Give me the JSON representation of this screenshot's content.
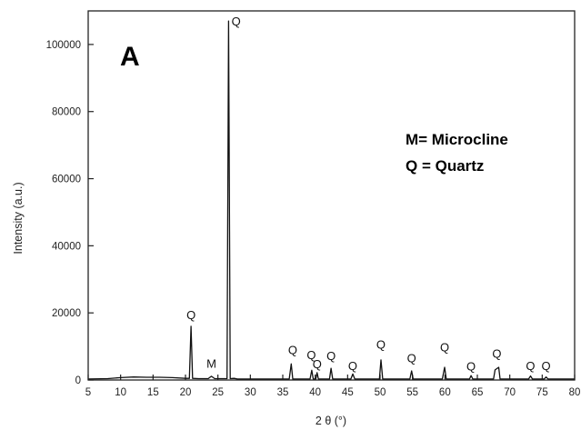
{
  "chart_data": {
    "type": "line",
    "panel_label": "A",
    "xlabel": "2 θ (°)",
    "ylabel": "Intensity (a.u.)",
    "xlim": [
      5,
      80
    ],
    "ylim": [
      0,
      110000
    ],
    "x_ticks": [
      5,
      10,
      15,
      20,
      25,
      30,
      35,
      40,
      45,
      50,
      55,
      60,
      65,
      70,
      75,
      80
    ],
    "y_ticks": [
      0,
      20000,
      40000,
      60000,
      80000,
      100000
    ],
    "legend_lines": [
      "M= Microcline",
      "Q = Quartz"
    ],
    "series": [
      {
        "x": [
          5,
          8,
          10,
          12,
          14,
          16,
          18,
          20,
          20.6,
          20.86,
          21.1,
          22,
          23,
          23.5,
          24.0,
          24.5,
          25,
          26,
          26.4,
          26.64,
          26.9,
          27.5,
          28,
          30,
          32,
          34,
          36,
          36.3,
          36.54,
          36.8,
          38,
          39.2,
          39.47,
          39.7,
          40.1,
          40.29,
          40.5,
          42.2,
          42.45,
          42.7,
          45.5,
          45.79,
          46.1,
          49.9,
          50.14,
          50.4,
          54.6,
          54.87,
          55.1,
          59.6,
          59.96,
          60.2,
          63.8,
          64.03,
          64.3,
          67.5,
          67.74,
          68.3,
          68.5,
          72.9,
          73.2,
          73.5,
          75.3,
          75.6,
          75.9,
          80
        ],
        "y": [
          300,
          400,
          700,
          900,
          800,
          800,
          700,
          500,
          500,
          16000,
          500,
          400,
          400,
          400,
          1100,
          400,
          400,
          400,
          400,
          107000,
          400,
          500,
          300,
          300,
          300,
          300,
          300,
          4800,
          300,
          300,
          300,
          300,
          2900,
          300,
          300,
          2200,
          300,
          300,
          3500,
          300,
          300,
          1800,
          300,
          300,
          6000,
          300,
          300,
          2700,
          300,
          300,
          3800,
          300,
          300,
          1300,
          300,
          300,
          3000,
          3800,
          300,
          300,
          1200,
          300,
          300,
          900,
          300,
          300
        ]
      }
    ],
    "peak_labels": [
      {
        "text": "Q",
        "x": 20.86,
        "y": 18200
      },
      {
        "text": "M",
        "x": 24.0,
        "y": 3700
      },
      {
        "text": "Q",
        "x": 27.8,
        "y": 105700
      },
      {
        "text": "Q",
        "x": 36.54,
        "y": 7700
      },
      {
        "text": "Q",
        "x": 39.4,
        "y": 6200
      },
      {
        "text": "Q",
        "x": 40.3,
        "y": 3500
      },
      {
        "text": "Q",
        "x": 42.45,
        "y": 6000
      },
      {
        "text": "Q",
        "x": 45.79,
        "y": 3000
      },
      {
        "text": "Q",
        "x": 50.14,
        "y": 9300
      },
      {
        "text": "Q",
        "x": 54.87,
        "y": 5300
      },
      {
        "text": "Q",
        "x": 59.96,
        "y": 8500
      },
      {
        "text": "Q",
        "x": 64.03,
        "y": 2800
      },
      {
        "text": "Q",
        "x": 68.0,
        "y": 6700
      },
      {
        "text": "Q",
        "x": 73.2,
        "y": 3000
      },
      {
        "text": "Q",
        "x": 75.6,
        "y": 3000
      }
    ],
    "grid": false,
    "line_color": "#111111"
  }
}
